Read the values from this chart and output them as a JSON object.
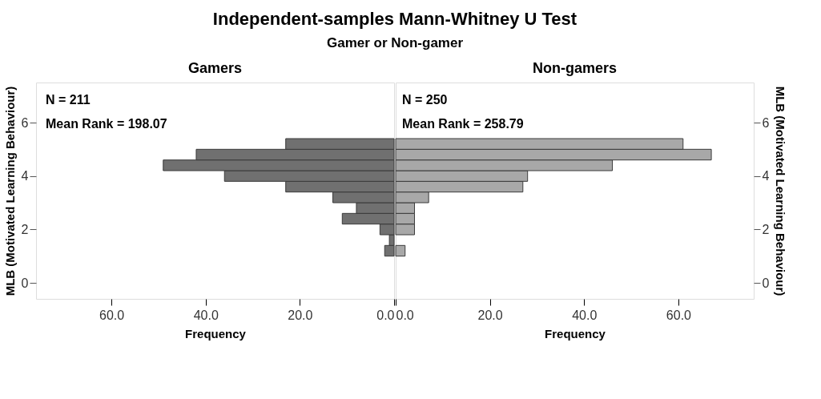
{
  "chart_data": [
    {
      "type": "histogram",
      "orientation": "horizontal",
      "title": "Independent-samples Mann-Whitney U Test",
      "subtitle": "Gamer or Non-gamer",
      "legend_title": "Gamers",
      "xlabel": "Frequency",
      "ylabel": "MLB (Motivated Learning Behaviour)",
      "bins": [
        1.0,
        1.4,
        1.8,
        2.2,
        2.6,
        3.0,
        3.4,
        3.8,
        4.2,
        4.6,
        5.0,
        5.4
      ],
      "series": [
        {
          "color": "#707070",
          "values": [
            2,
            1,
            3,
            11,
            8,
            13,
            23,
            36,
            49,
            42,
            23
          ]
        }
      ],
      "xlim": [
        76,
        0
      ],
      "xticks": [
        {
          "value": 60,
          "label": "60.0"
        },
        {
          "value": 40,
          "label": "40.0"
        },
        {
          "value": 20,
          "label": "20.0"
        },
        {
          "value": 0,
          "label": "0.0"
        }
      ],
      "ylim": [
        -0.6,
        7.5
      ],
      "yticks": [
        0,
        2,
        4,
        6
      ],
      "grid": false,
      "annotations": [
        "N = 211",
        "Mean Rank = 198.07"
      ]
    },
    {
      "type": "histogram",
      "orientation": "horizontal",
      "legend_title": "Non-gamers",
      "xlabel": "Frequency",
      "ylabel": "MLB (Motivated Learning Behaviour)",
      "bins": [
        1.0,
        1.4,
        1.8,
        2.2,
        2.6,
        3.0,
        3.4,
        3.8,
        4.2,
        4.6,
        5.0,
        5.4
      ],
      "series": [
        {
          "color": "#a8a8a8",
          "values": [
            2,
            0,
            4,
            4,
            4,
            7,
            27,
            28,
            46,
            67,
            61
          ]
        }
      ],
      "xlim": [
        0,
        76
      ],
      "xticks": [
        {
          "value": 0,
          "label": "0.0"
        },
        {
          "value": 20,
          "label": "20.0"
        },
        {
          "value": 40,
          "label": "40.0"
        },
        {
          "value": 60,
          "label": "60.0"
        }
      ],
      "ylim": [
        -0.6,
        7.5
      ],
      "yticks": [
        0,
        2,
        4,
        6
      ],
      "grid": false,
      "annotations": [
        "N = 250",
        "Mean Rank = 258.79"
      ]
    }
  ]
}
